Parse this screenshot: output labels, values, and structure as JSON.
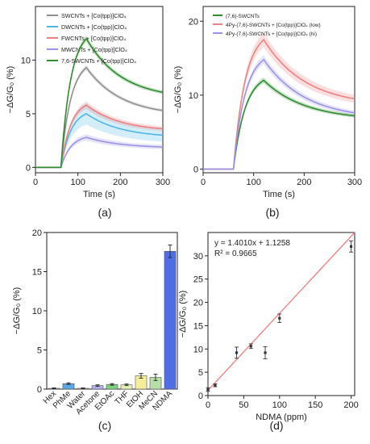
{
  "chart_data": [
    {
      "panel": "(a)",
      "type": "line",
      "xlabel": "Time (s)",
      "ylabel": "−ΔG/G₀ (%)",
      "xlim": [
        0,
        300
      ],
      "ylim": [
        -0.5,
        15
      ],
      "xticks": [
        0,
        100,
        200,
        300
      ],
      "yticks": [
        0,
        5,
        10
      ],
      "grid": false,
      "legend": "top-left",
      "shape": {
        "t_on": 60,
        "t_peak": 120,
        "t_end": 300
      },
      "series": [
        {
          "name": "SWCNTs + [Co(tpp)]ClO₄",
          "color": "#909090",
          "band": 0.25,
          "peak": 9.3,
          "end": 5.3
        },
        {
          "name": "DWCNTs + [Co(tpp)]ClO₄",
          "color": "#4fb6e8",
          "band": 1.0,
          "peak": 5.0,
          "end": 3.0
        },
        {
          "name": "FWCNTs + [Co(tpp)]ClO₄",
          "color": "#f08080",
          "band": 0.35,
          "peak": 5.8,
          "end": 3.6
        },
        {
          "name": "MWCNTs + [Co(tpp)]ClO₄",
          "color": "#9c93e8",
          "band": 0.3,
          "peak": 2.8,
          "end": 1.9
        },
        {
          "name": "7,6-SWCNTs + [Co(tpp)]ClO₄",
          "color": "#2e8b2e",
          "band": 0.3,
          "peak": 12.0,
          "end": 7.0
        }
      ]
    },
    {
      "panel": "(b)",
      "type": "line",
      "xlabel": "Time (s)",
      "ylabel": "−ΔG/G₀ (%)",
      "xlim": [
        0,
        300
      ],
      "ylim": [
        -0.5,
        22
      ],
      "xticks": [
        0,
        100,
        200,
        300
      ],
      "yticks": [
        0,
        10,
        20
      ],
      "grid": false,
      "legend": "top-left",
      "shape": {
        "t_on": 60,
        "t_peak": 120,
        "t_end": 300
      },
      "series": [
        {
          "name": "(7,6)-SWCNTs",
          "color": "#2e8b2e",
          "band": 0.4,
          "peak": 12.0,
          "end": 7.2
        },
        {
          "name": "4Py-(7,6)-SWCNTs + [Co(tpp)]ClO₄ (low)",
          "color": "#f08080",
          "band": 1.0,
          "peak": 17.5,
          "end": 9.5
        },
        {
          "name": "4Py-(7,6)-SWCNTs + [Co(tpp)]ClO₄ (hi)",
          "color": "#9c93e8",
          "band": 0.6,
          "peak": 14.8,
          "end": 7.6
        }
      ]
    },
    {
      "panel": "(c)",
      "type": "bar",
      "ylabel": "−ΔG/G₀ (%)",
      "ylim": [
        0,
        20
      ],
      "yticks": [
        0,
        5,
        10,
        15,
        20
      ],
      "categories": [
        "Hex",
        "PhMe",
        "Water",
        "Acetone",
        "EtOAc",
        "THF",
        "EtOH",
        "MeCN",
        "NDMA"
      ],
      "values": [
        0.1,
        0.7,
        0.1,
        0.45,
        0.6,
        0.55,
        1.7,
        1.5,
        17.6
      ],
      "errors": [
        0.05,
        0.1,
        0.05,
        0.1,
        0.1,
        0.1,
        0.3,
        0.4,
        0.8
      ],
      "colors": [
        "#a8a8a8",
        "#5aa8e8",
        "#f2a6a6",
        "#b3aef0",
        "#7fd27f",
        "#e2f0b4",
        "#f4ee9a",
        "#b6dea6",
        "#4f6ee6"
      ]
    },
    {
      "panel": "(d)",
      "type": "scatter",
      "xlabel": "NDMA (ppm)",
      "ylabel": "−ΔG/G₀ (%)",
      "xlim": [
        0,
        205
      ],
      "ylim": [
        0,
        35
      ],
      "xticks": [
        0,
        50,
        100,
        150,
        200
      ],
      "yticks": [
        0,
        5,
        10,
        15,
        20,
        25,
        30
      ],
      "points": [
        {
          "x": 0,
          "y": 1.3,
          "err": 0.4
        },
        {
          "x": 10,
          "y": 2.2,
          "err": 0.3
        },
        {
          "x": 40,
          "y": 9.2,
          "err": 1.2
        },
        {
          "x": 60,
          "y": 10.6,
          "err": 0.5
        },
        {
          "x": 80,
          "y": 9.2,
          "err": 1.3
        },
        {
          "x": 100,
          "y": 16.6,
          "err": 0.9
        },
        {
          "x": 200,
          "y": 32.0,
          "err": 1.2
        }
      ],
      "fit": {
        "slope": 1.401,
        "intercept": 1.1258,
        "color": "#f08080"
      },
      "annotations": [
        "y = 1.4010x + 1.1258",
        "R² = 0.9665"
      ]
    }
  ]
}
